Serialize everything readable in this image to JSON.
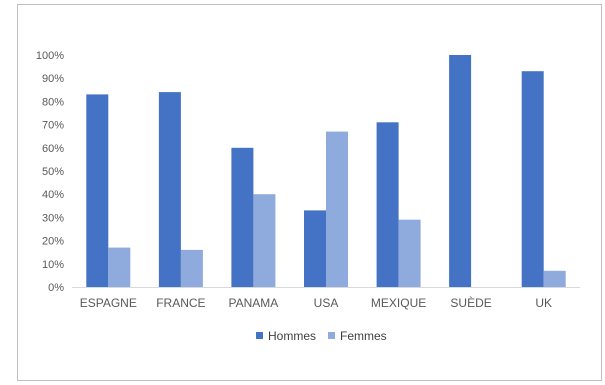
{
  "chart_data": {
    "type": "bar",
    "categories": [
      "ESPAGNE",
      "FRANCE",
      "PANAMA",
      "USA",
      "MEXIQUE",
      "SUÈDE",
      "UK"
    ],
    "series": [
      {
        "name": "Hommes",
        "color": "#4472C4",
        "values": [
          83,
          84,
          60,
          33,
          71,
          100,
          93
        ]
      },
      {
        "name": "Femmes",
        "color": "#8FAADC",
        "values": [
          17,
          16,
          40,
          67,
          29,
          0,
          7
        ]
      }
    ],
    "yticks": [
      "0%",
      "10%",
      "20%",
      "30%",
      "40%",
      "50%",
      "60%",
      "70%",
      "80%",
      "90%",
      "100%"
    ],
    "ylim": [
      0,
      100
    ],
    "legend": "bottom",
    "grid": false
  }
}
